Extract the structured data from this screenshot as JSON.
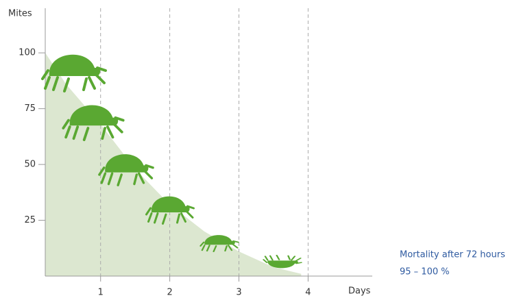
{
  "chart_data": {
    "type": "area",
    "y_label": "Mites",
    "x_label": "Days",
    "annotation": [
      "Mortality after 72 hours",
      "95 – 100 %"
    ],
    "x": [
      0.2,
      0.5,
      1,
      1.5,
      2,
      2.5,
      3,
      3.5,
      3.9
    ],
    "values": [
      100,
      86,
      68,
      48,
      32,
      20,
      11,
      4,
      1
    ],
    "color": "#dce7d0",
    "xlim": [
      0.2,
      4.65
    ],
    "ylim": [
      0,
      120
    ],
    "xticks": [
      1,
      2,
      3,
      4
    ],
    "yticks": [
      25,
      50,
      75,
      100
    ],
    "grid": true
  }
}
